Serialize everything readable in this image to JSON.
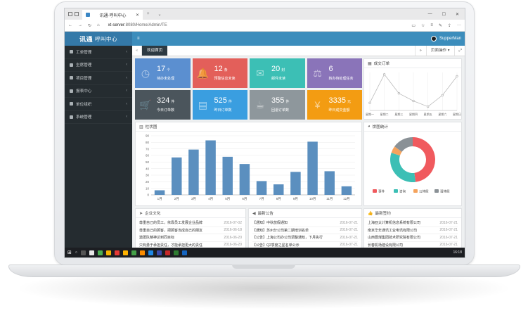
{
  "browser": {
    "tab_title": "讯通·呼叫中心",
    "url_prefix": "xt-server",
    "url_rest": ":8080/Home/Admin/TE"
  },
  "app": {
    "brand_main": "讯通",
    "brand_sub": "呼叫中心",
    "menu_toggle": "≡",
    "user_name": "SupperMan"
  },
  "sidebar": {
    "items": [
      {
        "label": "工单管理"
      },
      {
        "label": "坐席管理"
      },
      {
        "label": "项目管理"
      },
      {
        "label": "报表中心"
      },
      {
        "label": "单位组织"
      },
      {
        "label": "系统管理"
      }
    ]
  },
  "tabs": {
    "active": "欢迎首页",
    "page_actions": "页面操作"
  },
  "cards": [
    {
      "value": "17",
      "unit": "个",
      "label": "待办未处理",
      "color": "#5b8fd0",
      "icon": "clock-icon",
      "glyph": "◷"
    },
    {
      "value": "12",
      "unit": "条",
      "label": "预警信息未读",
      "color": "#e35f5a",
      "icon": "bell-icon",
      "glyph": "🔔"
    },
    {
      "value": "20",
      "unit": "封",
      "label": "邮件未读",
      "color": "#3cbfb5",
      "icon": "mail-icon",
      "glyph": "✉"
    },
    {
      "value": "6",
      "unit": "",
      "label": "转办待处理任务",
      "color": "#8a74b9",
      "icon": "gavel-icon",
      "glyph": "⚖"
    },
    {
      "value": "324",
      "unit": "件",
      "label": "今日订单数",
      "color": "#4b555c",
      "icon": "cart-icon",
      "glyph": "🛒"
    },
    {
      "value": "525",
      "unit": "件",
      "label": "昨日订单数",
      "color": "#3a9ee0",
      "icon": "clipboard-icon",
      "glyph": "▤"
    },
    {
      "value": "355",
      "unit": "件",
      "label": "回退订单数",
      "color": "#8e979c",
      "icon": "cup-icon",
      "glyph": "☕"
    },
    {
      "value": "3335",
      "unit": "元",
      "label": "昨日成交金额",
      "color": "#f39c12",
      "icon": "yen-icon",
      "glyph": "¥"
    }
  ],
  "panels": {
    "line_title": "成交订单",
    "bar_title": "柱状图",
    "pie_title": "饼图统计",
    "culture_title": "企业文化",
    "notice_title": "最新公告",
    "partners_title": "最新签约"
  },
  "chart_data": [
    {
      "type": "bar",
      "categories": [
        "1月",
        "2月",
        "3月",
        "4月",
        "5月",
        "6月",
        "7月",
        "8月",
        "9月",
        "10月",
        "11月",
        "12月"
      ],
      "values": [
        7,
        57,
        69,
        83,
        58,
        47,
        21,
        16,
        35,
        81,
        36,
        13
      ],
      "ylim": [
        0,
        90
      ],
      "yticks": [
        0,
        10,
        20,
        30,
        40,
        50,
        60,
        70,
        80,
        90
      ],
      "color": "#5b8fbf"
    },
    {
      "type": "line",
      "categories": [
        "星期一",
        "星期二",
        "星期三",
        "星期四",
        "星期五",
        "星期六",
        "星期日"
      ],
      "values": [
        20,
        95,
        45,
        25,
        10,
        40,
        90
      ],
      "ylim": [
        0,
        100
      ]
    },
    {
      "type": "pie",
      "donut": true,
      "slices": [
        {
          "name": "事件",
          "value": 48,
          "color": "#f05a5e"
        },
        {
          "name": "咨询",
          "value": 32,
          "color": "#3cbfb5"
        },
        {
          "name": "公休假",
          "value": 5,
          "color": "#f5a35c"
        },
        {
          "name": "请休假",
          "value": 15,
          "color": "#8a9196"
        }
      ]
    }
  ],
  "culture": [
    {
      "text": "尊重自己的员工，依靠员工发展企业品牌",
      "date": "2016-07-02"
    },
    {
      "text": "尊重自己的顾客，把顾客当成自己的朋友",
      "date": "2016-06-18"
    },
    {
      "text": "激团队精神达到同目标",
      "date": "2016-06-20"
    },
    {
      "text": "只有勇于承担责任，才能承担更大的责任",
      "date": "2016-06-20"
    }
  ],
  "notices": [
    {
      "text": "【通知】中秋放假通知",
      "date": "2016-07-21"
    },
    {
      "text": "【通知】苏州分公司第二期培训名单",
      "date": "2016-07-21"
    },
    {
      "text": "【公告】上海公司办公司调整通知，下月执行",
      "date": "2016-07-21"
    },
    {
      "text": "【公告】Q2季度之星名单公示",
      "date": "2016-07-21"
    }
  ],
  "partners": [
    {
      "text": "上海亚太计算机信息系统有限公司",
      "date": "2016-07-21"
    },
    {
      "text": "南京华年通讯工业电讯有限公司",
      "date": "2016-07-21"
    },
    {
      "text": "山西晋煤集团技术研究院有限公司",
      "date": "2016-07-21"
    },
    {
      "text": "长春机场建设有限公司",
      "date": "2016-07-21"
    }
  ],
  "taskbar": {
    "clock": "16:18"
  }
}
